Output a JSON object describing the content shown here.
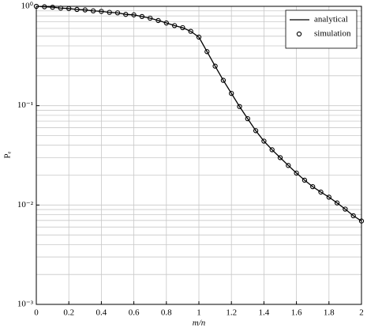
{
  "chart_data": {
    "type": "line",
    "xlabel": "m/n",
    "ylabel": "Pₑ",
    "x": [
      0,
      0.05,
      0.1,
      0.15,
      0.2,
      0.25,
      0.3,
      0.35,
      0.4,
      0.45,
      0.5,
      0.55,
      0.6,
      0.65,
      0.7,
      0.75,
      0.8,
      0.85,
      0.9,
      0.95,
      1.0,
      1.05,
      1.1,
      1.15,
      1.2,
      1.25,
      1.3,
      1.35,
      1.4,
      1.45,
      1.5,
      1.55,
      1.6,
      1.65,
      1.7,
      1.75,
      1.8,
      1.85,
      1.9,
      1.95,
      2.0
    ],
    "series": [
      {
        "name": "analytical",
        "type": "line",
        "color": "#000000",
        "values": [
          1.0,
          0.99,
          0.98,
          0.96,
          0.95,
          0.93,
          0.92,
          0.9,
          0.89,
          0.87,
          0.86,
          0.83,
          0.82,
          0.79,
          0.76,
          0.72,
          0.68,
          0.64,
          0.61,
          0.56,
          0.49,
          0.35,
          0.25,
          0.18,
          0.133,
          0.098,
          0.074,
          0.056,
          0.044,
          0.036,
          0.03,
          0.025,
          0.021,
          0.0178,
          0.0153,
          0.0135,
          0.012,
          0.0105,
          0.0091,
          0.0078,
          0.0069
        ]
      },
      {
        "name": "simulation",
        "type": "scatter",
        "color": "#000000",
        "values": [
          1.0,
          0.99,
          0.98,
          0.96,
          0.95,
          0.93,
          0.92,
          0.9,
          0.89,
          0.87,
          0.86,
          0.83,
          0.82,
          0.79,
          0.76,
          0.72,
          0.68,
          0.64,
          0.61,
          0.56,
          0.49,
          0.35,
          0.25,
          0.18,
          0.133,
          0.098,
          0.074,
          0.056,
          0.044,
          0.036,
          0.03,
          0.025,
          0.021,
          0.0178,
          0.0153,
          0.0135,
          0.012,
          0.0105,
          0.0091,
          0.0078,
          0.0069
        ]
      }
    ],
    "xlim": [
      0,
      2
    ],
    "xticks": [
      0,
      0.2,
      0.4,
      0.6,
      0.8,
      1,
      1.2,
      1.4,
      1.6,
      1.8,
      2
    ],
    "ylim": [
      0.001,
      1
    ],
    "ylog": true,
    "yticks": [
      {
        "value": 0.001,
        "label": "10⁻³"
      },
      {
        "value": 0.01,
        "label": "10⁻²"
      },
      {
        "value": 0.1,
        "label": "10⁻¹"
      },
      {
        "value": 1,
        "label": "10⁰"
      }
    ],
    "grid": true,
    "legend": "upper right"
  }
}
